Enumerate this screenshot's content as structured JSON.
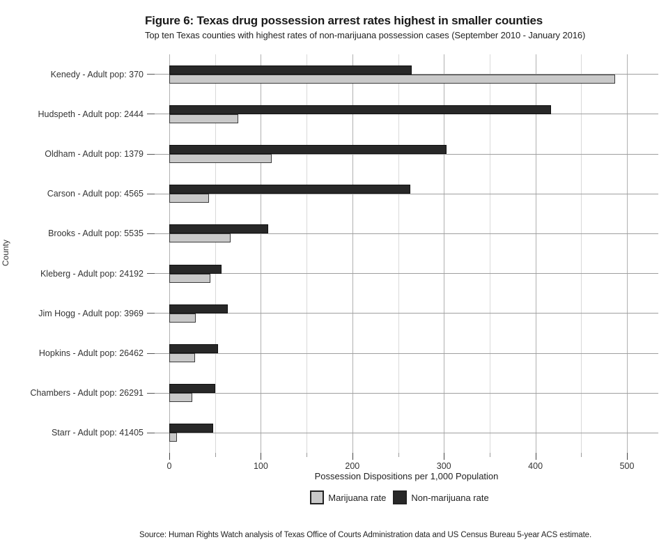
{
  "figure": {
    "title": "Figure 6: Texas drug possession arrest rates highest in smaller counties",
    "subtitle": "Top ten Texas counties with highest rates of non-marijuana possession cases (September 2010 - January 2016)",
    "source": "Source: Human Rights Watch analysis of Texas Office of Courts Administration data and US Census Bureau 5-year ACS estimate."
  },
  "chart_data": {
    "type": "bar",
    "orientation": "horizontal",
    "title": "Figure 6: Texas drug possession arrest rates highest in smaller counties",
    "subtitle": "Top ten Texas counties with highest rates of non-marijuana possession cases (September 2010 - January 2016)",
    "xlabel": "Possession Dispositions per 1,000 Population",
    "ylabel": "County",
    "xlim": [
      0,
      500
    ],
    "x_ticks": [
      0,
      100,
      200,
      300,
      400,
      500
    ],
    "minor_tick_interval": 50,
    "grid": true,
    "legend_position": "bottom",
    "categories": [
      "Kenedy - Adult pop: 370",
      "Hudspeth - Adult pop: 2444",
      "Oldham - Adult pop: 1379",
      "Carson - Adult pop: 4565",
      "Brooks - Adult pop: 5535",
      "Kleberg - Adult pop: 24192",
      "Jim Hogg - Adult pop: 3969",
      "Hopkins - Adult pop: 26462",
      "Chambers - Adult pop: 26291",
      "Starr - Adult pop: 41405"
    ],
    "series": [
      {
        "name": "Marijuana rate",
        "color": "#c9c9c9",
        "values": [
          487,
          75,
          112,
          43,
          67,
          45,
          29,
          28,
          25,
          8
        ]
      },
      {
        "name": "Non-marijuana rate",
        "color": "#282828",
        "values": [
          265,
          417,
          303,
          263,
          108,
          57,
          64,
          53,
          50,
          48
        ]
      }
    ]
  },
  "colors": {
    "marijuana_bar": "#c9c9c9",
    "non_marijuana_bar": "#282828",
    "major_grid": "#b0b0b0",
    "minor_grid": "#d9d9d9",
    "row_grid": "#9e9e9e",
    "text": "#333333"
  }
}
